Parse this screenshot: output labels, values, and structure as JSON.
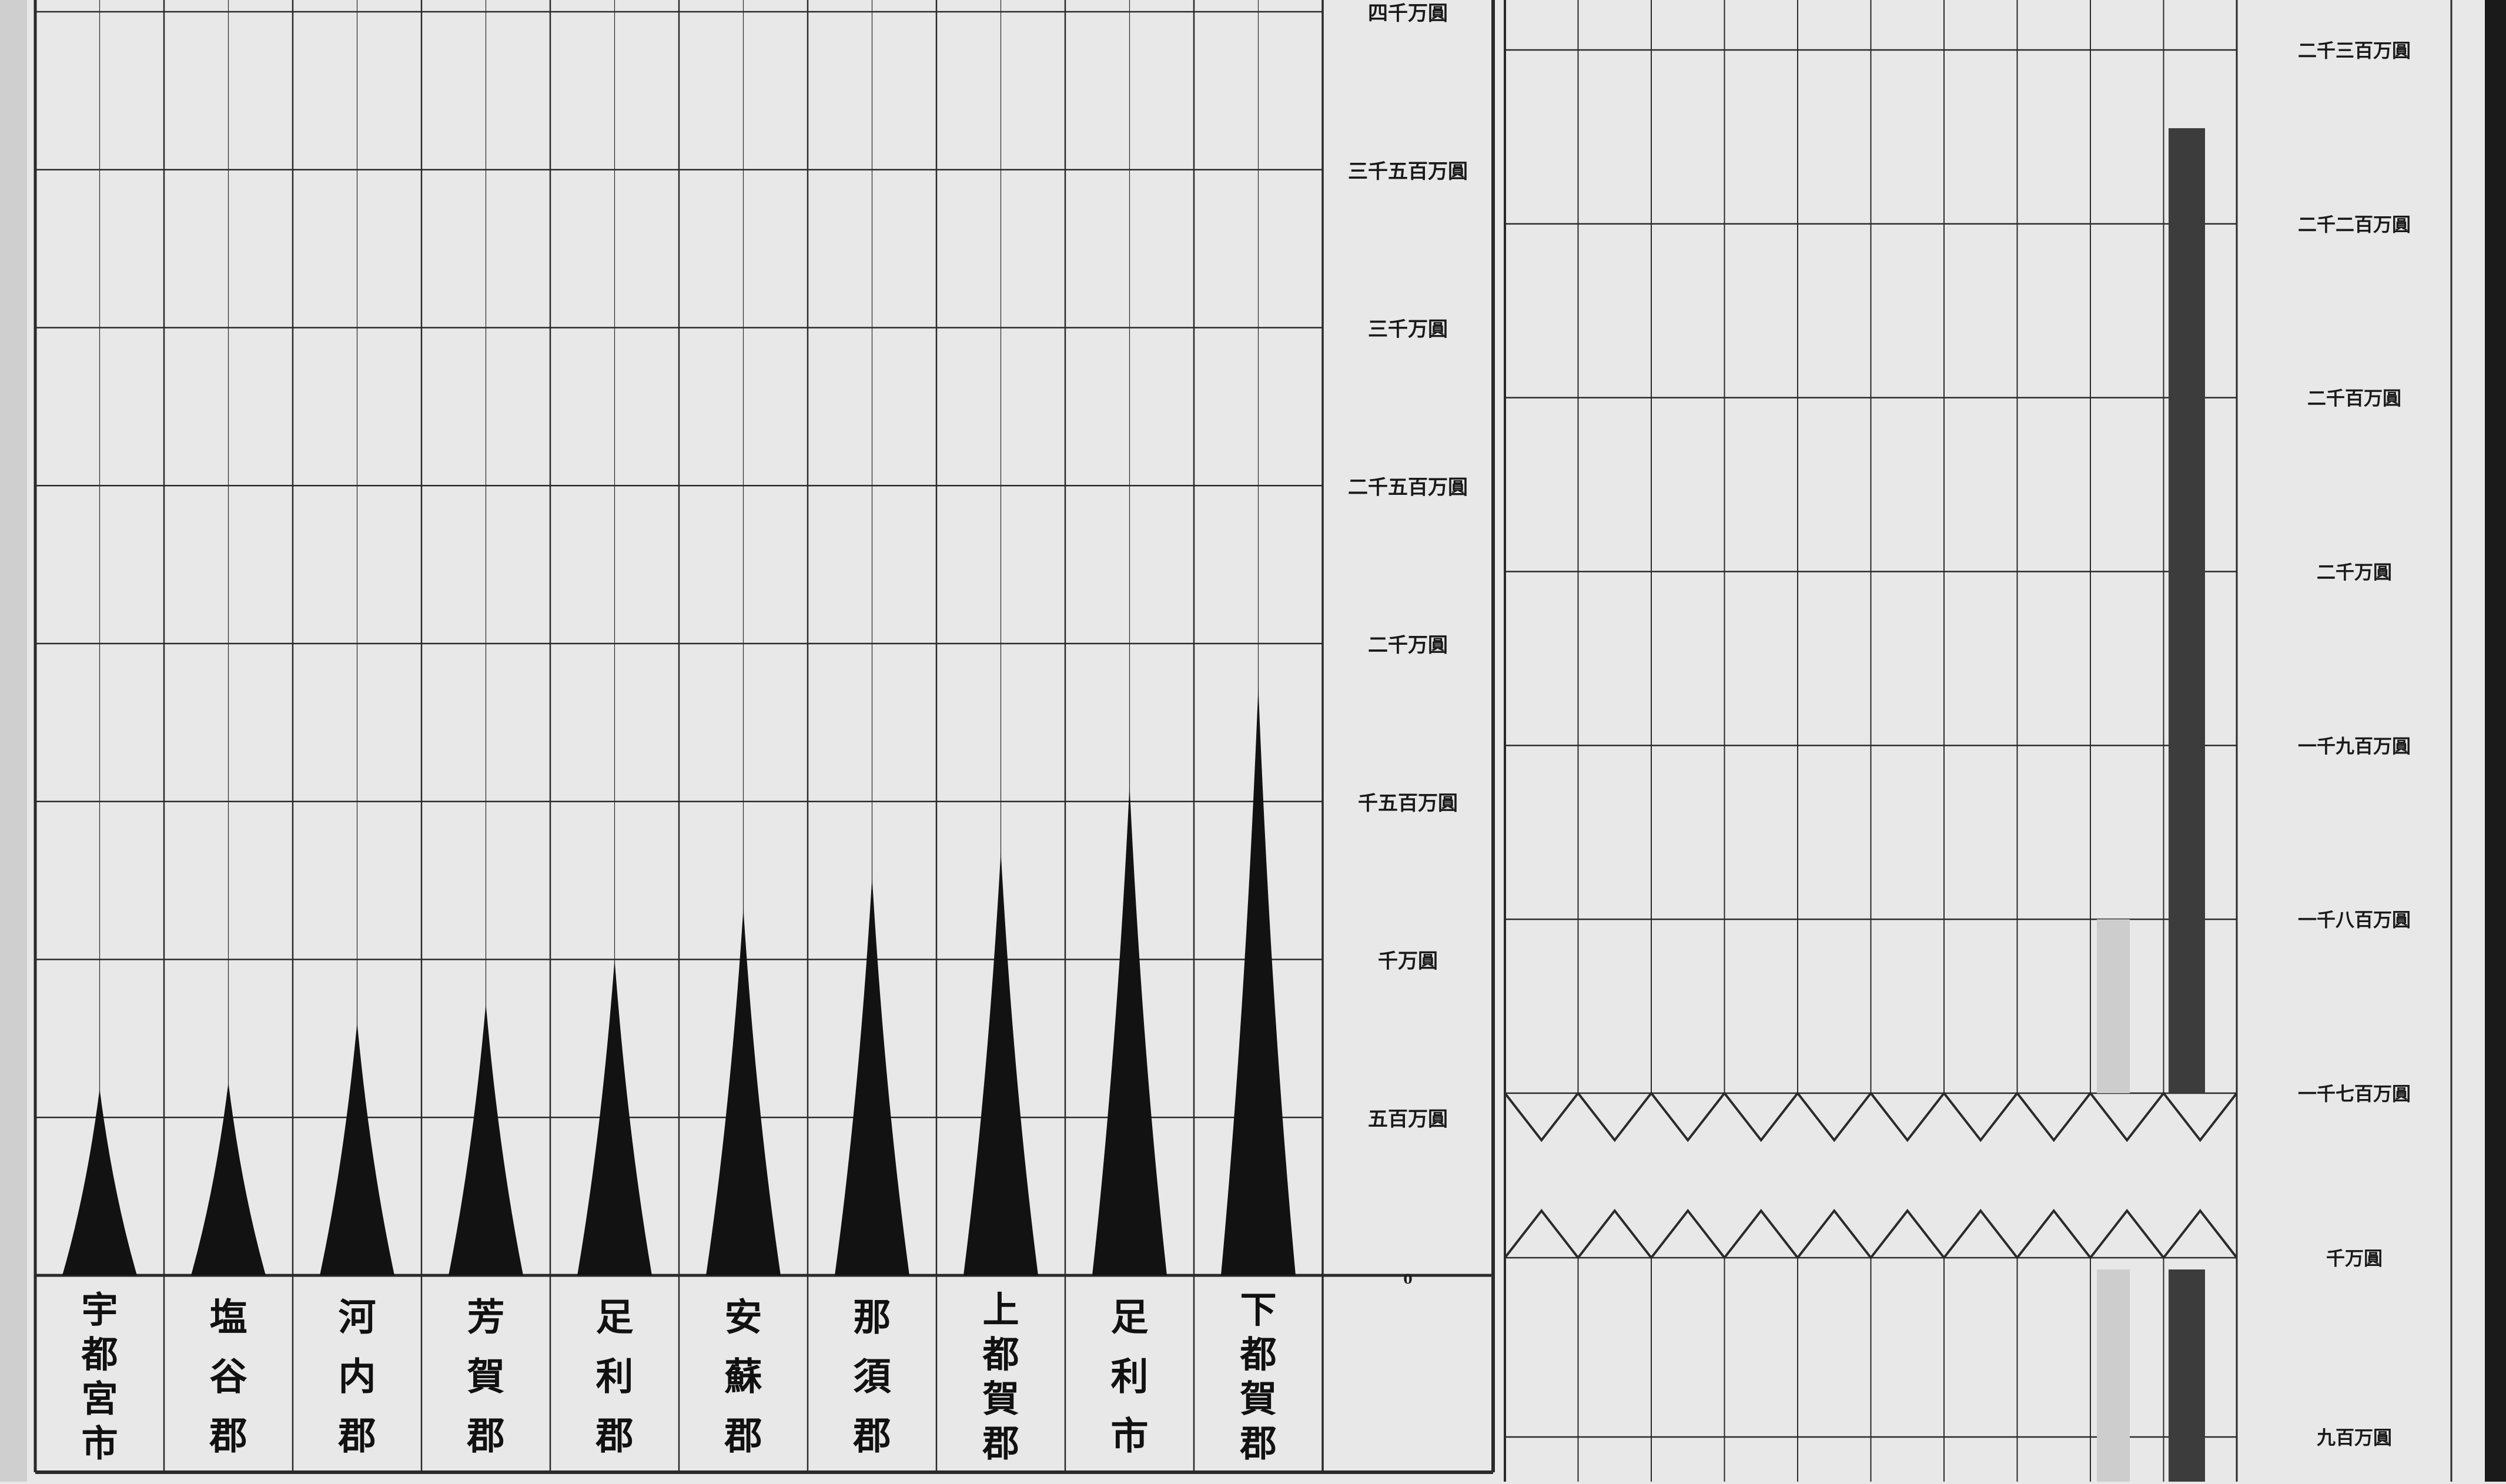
{
  "chart_data": [
    {
      "type": "bar",
      "mark_shape": "spike",
      "title": "",
      "xlabel": "",
      "ylabel": "",
      "categories": [
        "宇都宮市",
        "塩谷郡",
        "河内郡",
        "芳賀郡",
        "足利郡",
        "安蘇郡",
        "那須郡",
        "上都賀郡",
        "足利市",
        "下都賀郡"
      ],
      "values": [
        590,
        610,
        800,
        860,
        1000,
        1160,
        1260,
        1340,
        1550,
        1860
      ],
      "unit": "万圓",
      "ylim": [
        0,
        4000
      ],
      "yticks": [
        0,
        500,
        1000,
        1500,
        2000,
        2500,
        3000,
        3500,
        4000
      ],
      "ytick_labels": [
        "0",
        "五百万圓",
        "千万圓",
        "千五百万圓",
        "二千万圓",
        "二千五百万圓",
        "三千万圓",
        "三千五百万圓",
        "四千万圓"
      ],
      "grid": true,
      "bar_color": "#121212"
    },
    {
      "type": "bar",
      "title": "",
      "axis_break": [
        1000,
        1700
      ],
      "ylim": [
        900,
        2300
      ],
      "yticks": [
        900,
        1000,
        1700,
        1800,
        1900,
        2000,
        2100,
        2200,
        2300
      ],
      "ytick_labels": [
        "九百万圓",
        "千万圓",
        "一千七百万圓",
        "一千八百万圓",
        "一千九百万圓",
        "二千万圓",
        "二千百万圓",
        "二千二百万圓",
        "二千三百万圓"
      ],
      "series": [
        {
          "value": 2255,
          "color": "#3c3c3c"
        },
        {
          "value": 1800,
          "color": "#cdcdcd"
        }
      ],
      "grid": true
    }
  ]
}
